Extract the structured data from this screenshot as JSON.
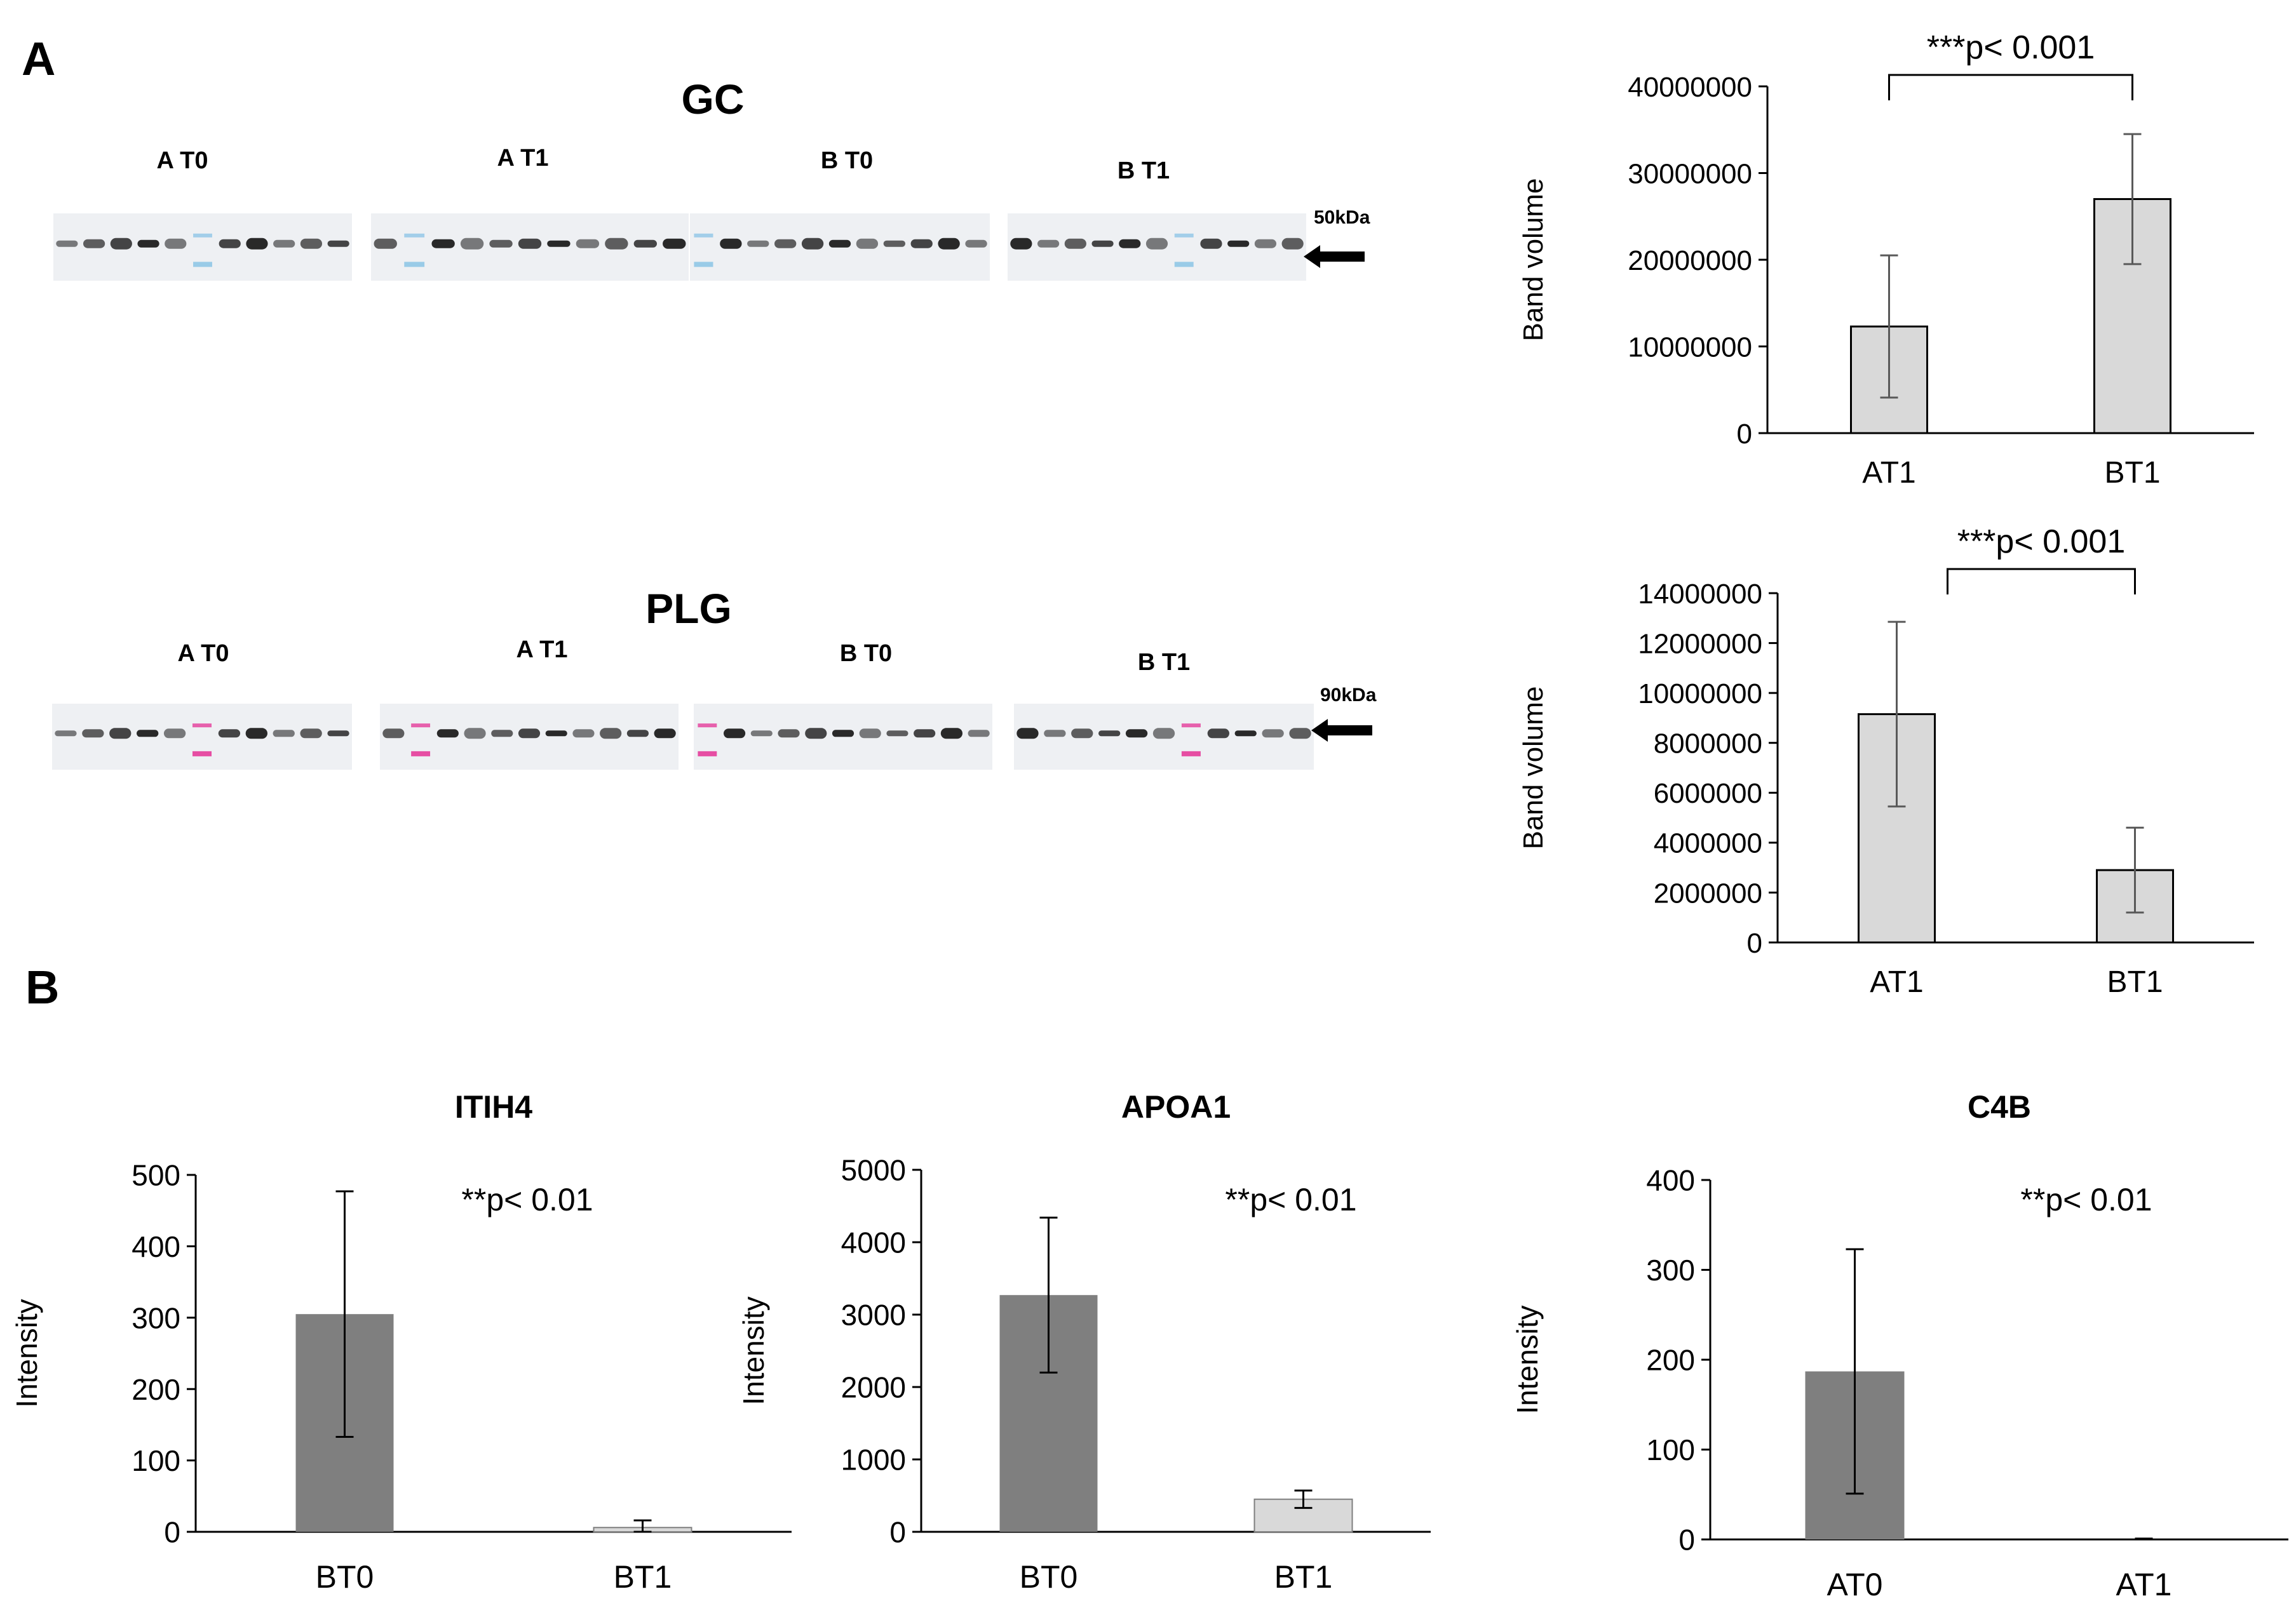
{
  "panel_labels": {
    "a": "A",
    "b": "B"
  },
  "blots": [
    {
      "title": "GC",
      "marker": "50kDa",
      "lanes": [
        "A T0",
        "A T1",
        "B T0",
        "B T1"
      ]
    },
    {
      "title": "PLG",
      "marker": "90kDa",
      "lanes": [
        "A T0",
        "A T1",
        "B T0",
        "B T1"
      ]
    }
  ],
  "colors": {
    "light_bar": "#d9d9d9",
    "dark_bar": "#7f7f7f",
    "axis": "#000000",
    "band": "#151515",
    "marker_blue": "#8fc6e6",
    "marker_pink": "#e43c9a"
  },
  "chart_data": [
    {
      "id": "gc",
      "type": "bar",
      "title": "",
      "categories": [
        "AT1",
        "BT1"
      ],
      "values": [
        12300000,
        27000000
      ],
      "error": [
        8200000,
        7500000
      ],
      "ylabel": "Band volume",
      "xlabel": "",
      "ylim": [
        0,
        40000000
      ],
      "yticks": [
        0,
        10000000,
        20000000,
        30000000,
        40000000
      ],
      "ytick_labels": [
        "0",
        "10000000",
        "20000000",
        "30000000",
        "40000000"
      ],
      "bar_color": "light",
      "annotation": "***p< 0.001",
      "bracket": true
    },
    {
      "id": "plg",
      "type": "bar",
      "title": "",
      "categories": [
        "AT1",
        "BT1"
      ],
      "values": [
        9150000,
        2900000
      ],
      "error": [
        3700000,
        1700000
      ],
      "ylabel": "Band volume",
      "xlabel": "",
      "ylim": [
        0,
        14000000
      ],
      "yticks": [
        0,
        2000000,
        4000000,
        6000000,
        8000000,
        10000000,
        12000000,
        14000000
      ],
      "ytick_labels": [
        "0",
        "2000000",
        "4000000",
        "6000000",
        "8000000",
        "10000000",
        "12000000",
        "14000000"
      ],
      "bar_color": "light",
      "annotation": "***p< 0.001",
      "bracket": true
    },
    {
      "id": "itih4",
      "type": "bar",
      "title": "ITIH4",
      "categories": [
        "BT0",
        "BT1"
      ],
      "values": [
        305,
        6
      ],
      "error": [
        172,
        10
      ],
      "ylabel": "Intensity",
      "xlabel": "",
      "ylim": [
        0,
        500
      ],
      "yticks": [
        0,
        100,
        200,
        300,
        400,
        500
      ],
      "ytick_labels": [
        "0",
        "100",
        "200",
        "300",
        "400",
        "500"
      ],
      "bar_colors": [
        "dark",
        "light"
      ],
      "annotation": "**p< 0.01",
      "bracket": false
    },
    {
      "id": "apoa1",
      "type": "bar",
      "title": "APOA1",
      "categories": [
        "BT0",
        "BT1"
      ],
      "values": [
        3270,
        450
      ],
      "error": [
        1070,
        120
      ],
      "ylabel": "Intensity",
      "xlabel": "",
      "ylim": [
        0,
        5000
      ],
      "yticks": [
        0,
        1000,
        2000,
        3000,
        4000,
        5000
      ],
      "ytick_labels": [
        "0",
        "1000",
        "2000",
        "3000",
        "4000",
        "5000"
      ],
      "bar_colors": [
        "dark",
        "light"
      ],
      "annotation": "**p< 0.01",
      "bracket": false
    },
    {
      "id": "c4b",
      "type": "bar",
      "title": "C4B",
      "categories": [
        "AT0",
        "AT1"
      ],
      "values": [
        187,
        0
      ],
      "error": [
        136,
        1
      ],
      "ylabel": "Intensity",
      "xlabel": "",
      "ylim": [
        0,
        400
      ],
      "yticks": [
        0,
        100,
        200,
        300,
        400
      ],
      "ytick_labels": [
        "0",
        "100",
        "200",
        "300",
        "400"
      ],
      "bar_colors": [
        "dark",
        "light"
      ],
      "annotation": "**p< 0.01",
      "bracket": false
    }
  ]
}
